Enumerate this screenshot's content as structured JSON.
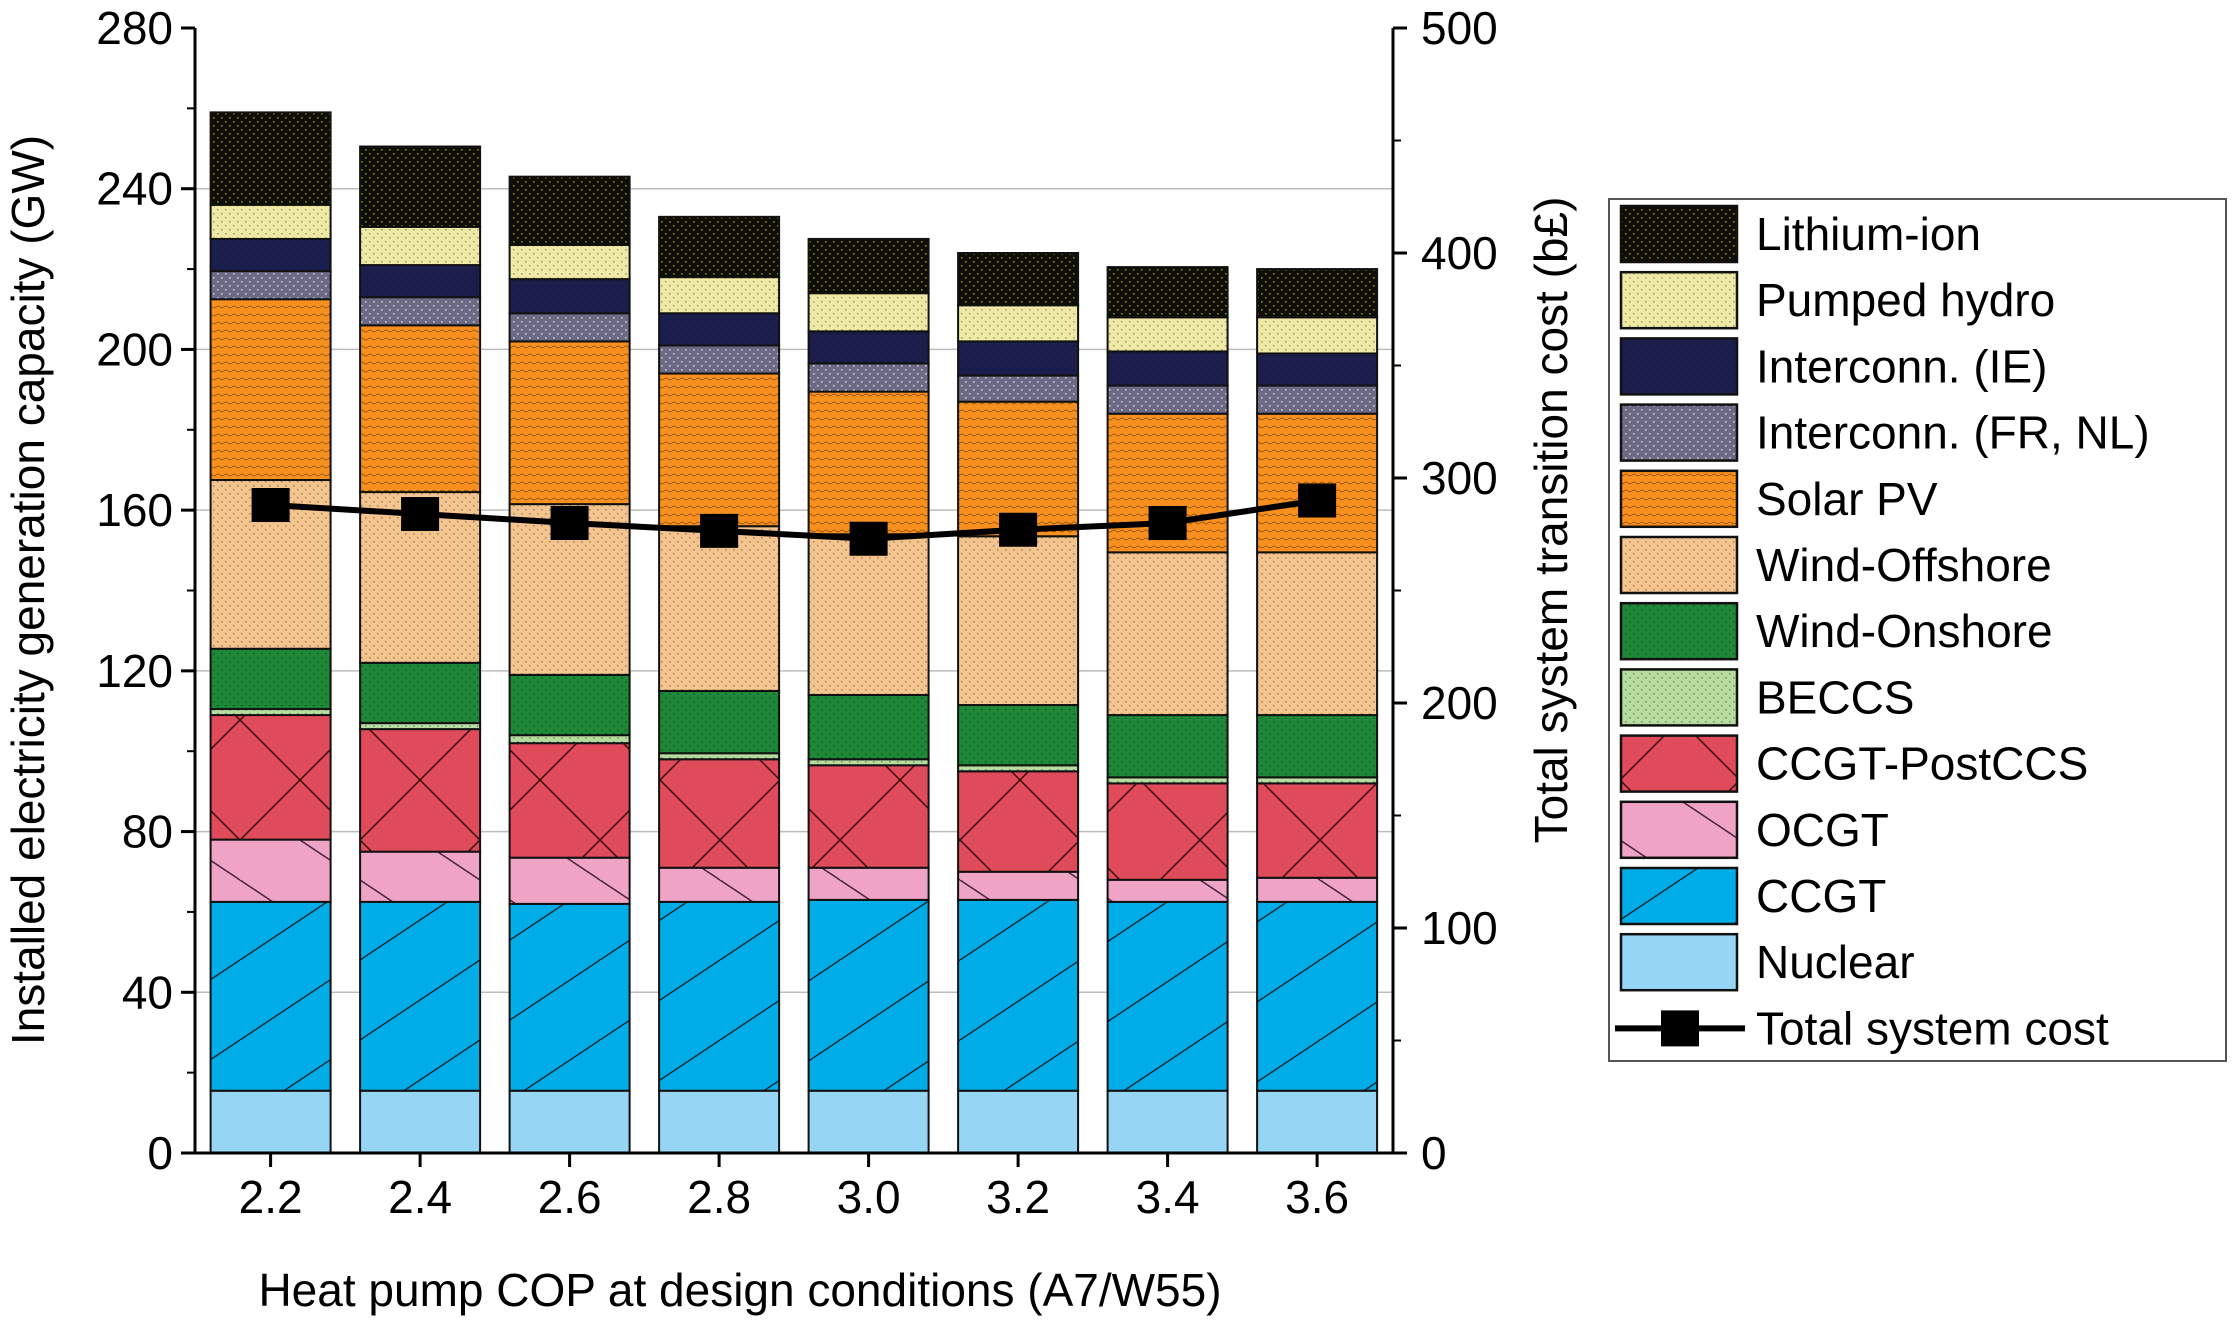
{
  "chart_data": {
    "type": "bar",
    "stacked": true,
    "xlabel": "Heat pump COP at design conditions (A7/W55)",
    "ylabel": "Installed electricity generation capacity (GW)",
    "y2label": "Total system transition cost (b£)",
    "ylim": [
      0,
      280
    ],
    "y2lim": [
      0,
      500
    ],
    "yticks": [
      0,
      40,
      80,
      120,
      160,
      200,
      240,
      280
    ],
    "y2ticks": [
      0,
      100,
      200,
      300,
      400,
      500
    ],
    "grid": true,
    "legend_position": "right",
    "categories": [
      "2.2",
      "2.4",
      "2.6",
      "2.8",
      "3.0",
      "3.2",
      "3.4",
      "3.6"
    ],
    "series": [
      {
        "name": "Nuclear",
        "color": "#97d5f5",
        "pattern": "none",
        "values": [
          15.5,
          15.5,
          15.5,
          15.5,
          15.5,
          15.5,
          15.5,
          15.5
        ]
      },
      {
        "name": "CCGT",
        "color": "#00ade6",
        "pattern": "diag-up",
        "values": [
          47,
          47,
          46.5,
          47,
          47.5,
          47.5,
          47,
          47
        ]
      },
      {
        "name": "OCGT",
        "color": "#efa4c6",
        "pattern": "diag-down",
        "values": [
          15.5,
          12.5,
          11.5,
          8.5,
          8,
          7,
          5.5,
          6
        ]
      },
      {
        "name": "CCGT-PostCCS",
        "color": "#e04b5b",
        "pattern": "cross",
        "values": [
          31,
          30.5,
          28.5,
          27,
          25.5,
          25,
          24,
          23.5
        ]
      },
      {
        "name": "BECCS",
        "color": "#b6dca0",
        "pattern": "dots",
        "values": [
          1.5,
          1.5,
          2,
          1.5,
          1.5,
          1.5,
          1.5,
          1.5
        ]
      },
      {
        "name": "Wind-Onshore",
        "color": "#1e8838",
        "pattern": "dots",
        "values": [
          15,
          15,
          15,
          15.5,
          16,
          15,
          15.5,
          15.5
        ]
      },
      {
        "name": "Wind-Offshore",
        "color": "#f4c48e",
        "pattern": "dots",
        "values": [
          42,
          42.5,
          42.5,
          41,
          40,
          42,
          40.5,
          40.5
        ]
      },
      {
        "name": "Solar PV",
        "color": "#f7901e",
        "pattern": "waves",
        "values": [
          45,
          41.5,
          40.5,
          38,
          35.5,
          33.5,
          34.5,
          34.5
        ]
      },
      {
        "name": "Interconn. (FR, NL)",
        "color": "#6c6a84",
        "pattern": "dots-light",
        "values": [
          7,
          7,
          7,
          7,
          7,
          6.5,
          7,
          7
        ]
      },
      {
        "name": "Interconn. (IE)",
        "color": "#1c1f4e",
        "pattern": "dots",
        "values": [
          8,
          8,
          8.5,
          8,
          8,
          8.5,
          8.5,
          8
        ]
      },
      {
        "name": "Pumped hydro",
        "color": "#eeeaa6",
        "pattern": "dots",
        "values": [
          8.5,
          9.5,
          8.5,
          9,
          9.5,
          9,
          8.5,
          9
        ]
      },
      {
        "name": "Lithium-ion",
        "color": "#0e0e06",
        "pattern": "dots-yellow",
        "values": [
          23,
          20,
          17,
          15,
          13.5,
          13,
          12.5,
          12
        ]
      }
    ],
    "line_series": {
      "name": "Total system cost",
      "axis": "right",
      "color": "#000000",
      "marker": "square",
      "values": [
        288,
        284,
        280,
        276.5,
        273,
        277,
        280,
        290
      ]
    }
  }
}
